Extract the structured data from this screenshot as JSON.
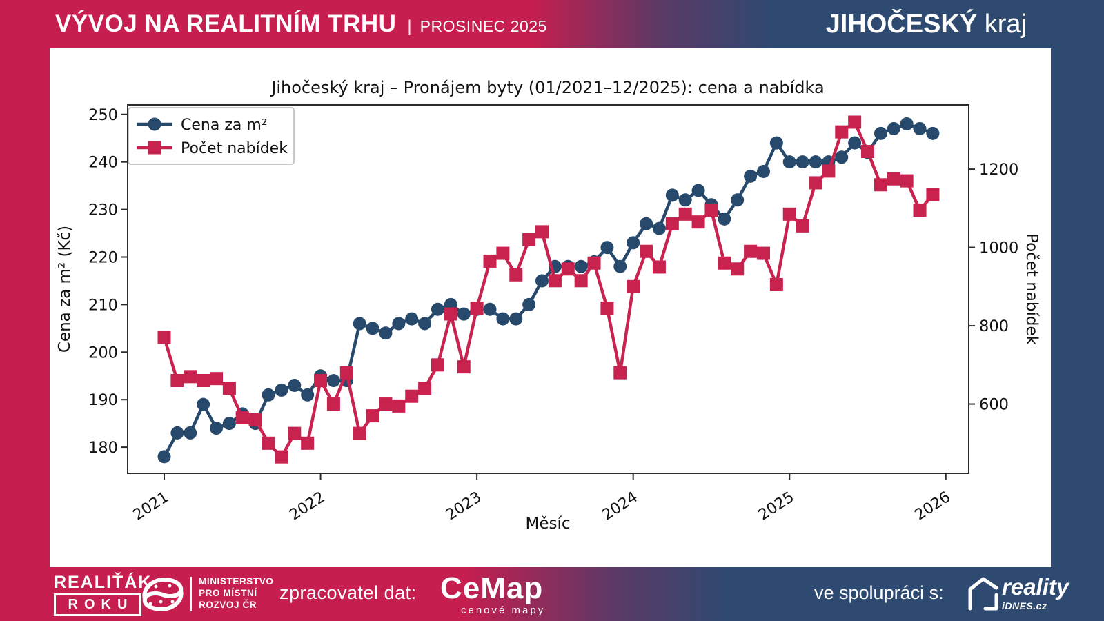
{
  "header": {
    "title": "VÝVOJ NA REALITNÍM TRHU",
    "separator": "|",
    "period": "PROSINEC 2025",
    "region_name": "JIHOČESKÝ",
    "region_word": " kraj"
  },
  "chart_data": {
    "type": "line",
    "title": "Jihočeský kraj – Pronájem byty (01/2021–12/2025): cena a nabídka",
    "xlabel": "Měsíc",
    "ylabel_left": "Cena za m² (Kč)",
    "ylabel_right": "Počet nabídek",
    "x_tick_labels": [
      "2021",
      "2022",
      "2023",
      "2024",
      "2025",
      "2026"
    ],
    "y_left_ticks": [
      180,
      190,
      200,
      210,
      220,
      230,
      240,
      250
    ],
    "y_right_ticks": [
      600,
      800,
      1000,
      1200
    ],
    "ylim_left": [
      174.5,
      252
    ],
    "ylim_right": [
      423,
      1364
    ],
    "grid": false,
    "legend_position": "upper left",
    "categories": [
      "01/2021",
      "02/2021",
      "03/2021",
      "04/2021",
      "05/2021",
      "06/2021",
      "07/2021",
      "08/2021",
      "09/2021",
      "10/2021",
      "11/2021",
      "12/2021",
      "01/2022",
      "02/2022",
      "03/2022",
      "04/2022",
      "05/2022",
      "06/2022",
      "07/2022",
      "08/2022",
      "09/2022",
      "10/2022",
      "11/2022",
      "12/2022",
      "01/2023",
      "02/2023",
      "03/2023",
      "04/2023",
      "05/2023",
      "06/2023",
      "07/2023",
      "08/2023",
      "09/2023",
      "10/2023",
      "11/2023",
      "12/2023",
      "01/2024",
      "02/2024",
      "03/2024",
      "04/2024",
      "05/2024",
      "06/2024",
      "07/2024",
      "08/2024",
      "09/2024",
      "10/2024",
      "11/2024",
      "12/2024",
      "01/2025",
      "02/2025",
      "03/2025",
      "04/2025",
      "05/2025",
      "06/2025",
      "07/2025",
      "08/2025",
      "09/2025",
      "10/2025",
      "11/2025",
      "12/2025"
    ],
    "series": [
      {
        "name": "Cena za m²",
        "axis": "left",
        "color": "#26496c",
        "marker": "circle",
        "values": [
          178,
          183,
          183,
          189,
          184,
          185,
          187,
          185,
          191,
          192,
          193,
          191,
          195,
          194,
          194,
          206,
          205,
          204,
          206,
          207,
          206,
          209,
          210,
          208,
          209,
          209,
          207,
          207,
          210,
          215,
          218,
          218,
          218,
          219,
          222,
          218,
          223,
          227,
          226,
          233,
          232,
          234,
          231,
          228,
          232,
          237,
          238,
          244,
          240,
          240,
          240,
          240,
          241,
          244,
          242,
          246,
          247,
          248,
          247,
          246
        ]
      },
      {
        "name": "Počet nabídek",
        "axis": "right",
        "color": "#c8234f",
        "marker": "square",
        "values": [
          770,
          660,
          670,
          660,
          665,
          640,
          565,
          560,
          500,
          465,
          525,
          500,
          660,
          600,
          680,
          525,
          570,
          600,
          595,
          620,
          640,
          700,
          830,
          695,
          845,
          965,
          985,
          930,
          1020,
          1040,
          915,
          945,
          915,
          960,
          845,
          680,
          900,
          990,
          950,
          1060,
          1085,
          1065,
          1095,
          960,
          945,
          990,
          985,
          905,
          1085,
          1055,
          1165,
          1195,
          1295,
          1320,
          1245,
          1160,
          1175,
          1170,
          1095,
          1135
        ]
      }
    ]
  },
  "footer": {
    "realtak_line1": "REALIŤÁK",
    "realtak_line2": "ROKU",
    "ministry_line1": "MINISTERSTVO",
    "ministry_line2": "PRO MÍSTNÍ",
    "ministry_line3": "ROZVOJ ČR",
    "processor_label": "zpracovatel dat:",
    "cemap_name": "CeMap",
    "cemap_sub": "cenové mapy",
    "partner_label": "ve spolupráci s:",
    "partner_name": "reality",
    "partner_sub": "iDNES.cz"
  },
  "colors": {
    "crimson": "#c61e4f",
    "dark_blue": "#2e4a70",
    "line_blue": "#26496c",
    "line_red": "#c8234f",
    "spine": "#2b2b2b",
    "text": "#111111"
  }
}
